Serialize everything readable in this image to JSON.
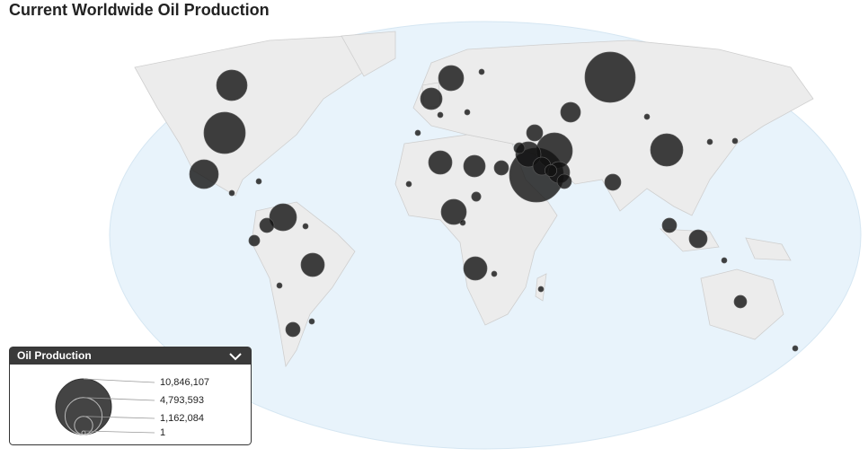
{
  "title": "Current Worldwide Oil Production",
  "legend": {
    "title": "Oil Production",
    "values": [
      {
        "value": 10846107,
        "label": "10,846,107"
      },
      {
        "value": 4793593,
        "label": "4,793,593"
      },
      {
        "value": 1162084,
        "label": "1,162,084"
      },
      1
    ]
  },
  "bubbles": {
    "values": [
      3260000,
      5970000,
      2890000,
      2540000,
      720000,
      410000,
      1910000,
      720000,
      2210000,
      1630000,
      1910000,
      1630000,
      720000,
      2210000,
      1910000,
      10160000,
      4510000,
      2210000,
      1130000,
      1630000,
      500000,
      720000,
      1370000,
      8850000,
      3660000,
      910000,
      1130000,
      720000,
      910000,
      410000,
      300000,
      550000,
      100000,
      100000,
      100000,
      100000,
      100000,
      100000,
      100000,
      100000,
      100000,
      100000,
      100000,
      100000,
      100000,
      100000,
      100000,
      100000,
      100000,
      100000
    ]
  }
}
